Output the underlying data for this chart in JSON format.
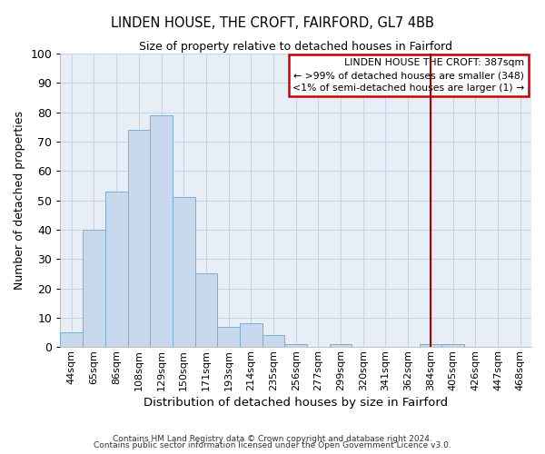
{
  "title": "LINDEN HOUSE, THE CROFT, FAIRFORD, GL7 4BB",
  "subtitle": "Size of property relative to detached houses in Fairford",
  "xlabel": "Distribution of detached houses by size in Fairford",
  "ylabel": "Number of detached properties",
  "bar_labels": [
    "44sqm",
    "65sqm",
    "86sqm",
    "108sqm",
    "129sqm",
    "150sqm",
    "171sqm",
    "193sqm",
    "214sqm",
    "235sqm",
    "256sqm",
    "277sqm",
    "299sqm",
    "320sqm",
    "341sqm",
    "362sqm",
    "384sqm",
    "405sqm",
    "426sqm",
    "447sqm",
    "468sqm"
  ],
  "bar_values": [
    5,
    40,
    53,
    74,
    79,
    51,
    25,
    7,
    8,
    4,
    1,
    0,
    1,
    0,
    0,
    0,
    1,
    1,
    0,
    0,
    0
  ],
  "bar_color": "#c8d9ee",
  "bar_edgecolor": "#7aaed4",
  "grid_color": "#c8d4e4",
  "background_color": "#e8eef6",
  "vline_color": "#aa0000",
  "legend_title": "LINDEN HOUSE THE CROFT: 387sqm",
  "legend_line1": "← >99% of detached houses are smaller (348)",
  "legend_line2": "<1% of semi-detached houses are larger (1) →",
  "ylim_max": 100,
  "yticks": [
    0,
    10,
    20,
    30,
    40,
    50,
    60,
    70,
    80,
    90,
    100
  ],
  "footer1": "Contains HM Land Registry data © Crown copyright and database right 2024.",
  "footer2": "Contains public sector information licensed under the Open Government Licence v3.0."
}
